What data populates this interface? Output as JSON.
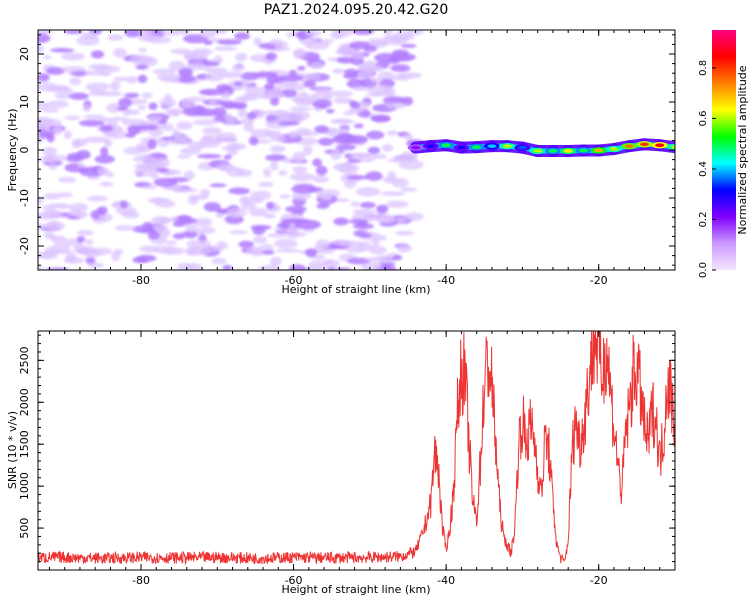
{
  "figure": {
    "title": "PAZ1.2024.095.20.42.G20"
  },
  "chart_data": [
    {
      "type": "heatmap",
      "xlabel": "Height of straight line (km)",
      "ylabel": "Frequency (Hz)",
      "xlim": [
        -93.5,
        -10.0
      ],
      "ylim": [
        -25,
        25
      ],
      "xticks": [
        -80,
        -60,
        -40,
        -20
      ],
      "yticks": [
        20,
        10,
        0,
        -10,
        -20
      ],
      "noise_region_x": [
        -93.5,
        -44.0
      ],
      "noise_freq_range": [
        -25,
        25
      ],
      "noise_amplitude_typical": 0.1,
      "signal_line": {
        "x": [
          -44,
          -42,
          -40,
          -38,
          -36,
          -34,
          -32,
          -30,
          -28,
          -26,
          -24,
          -22,
          -20,
          -18,
          -16,
          -14,
          -12,
          -10
        ],
        "frequency_hz": [
          0.5,
          0.8,
          1.0,
          0.5,
          0.6,
          0.8,
          0.8,
          0.5,
          -0.2,
          -0.2,
          -0.2,
          -0.1,
          -0.1,
          0.2,
          0.8,
          1.2,
          1.0,
          0.6
        ],
        "amplitude": [
          0.2,
          0.3,
          0.5,
          0.3,
          0.5,
          0.4,
          0.6,
          0.35,
          0.6,
          0.5,
          0.65,
          0.5,
          0.7,
          0.6,
          0.75,
          0.8,
          0.85,
          0.6
        ]
      },
      "colorbar": {
        "label": "Normalized spectral amplitude",
        "ticks": [
          0.0,
          0.2,
          0.4,
          0.6,
          0.8
        ],
        "range": [
          0.0,
          0.95
        ],
        "colors": [
          "#f2e6ff",
          "#cc99ff",
          "#8000ff",
          "#0000ff",
          "#00ffff",
          "#00ff00",
          "#ffff00",
          "#ff8000",
          "#ff0000",
          "#ff0080"
        ]
      }
    },
    {
      "type": "line",
      "xlabel": "Height of straight line (km)",
      "ylabel": "SNR (10 * v/v)",
      "xlim": [
        -93.5,
        -10.0
      ],
      "ylim": [
        0,
        2850
      ],
      "xticks": [
        -80,
        -60,
        -40,
        -20
      ],
      "yticks": [
        500,
        1000,
        1500,
        2000,
        2500
      ],
      "color": "#ee3333",
      "series": [
        {
          "x": [
            -93.5,
            -90,
            -85,
            -80,
            -75,
            -70,
            -65,
            -60,
            -55,
            -50,
            -46,
            -44,
            -43,
            -42,
            -41.5,
            -41,
            -40.5,
            -40,
            -39.5,
            -39,
            -38.5,
            -38,
            -37.5,
            -37,
            -36.5,
            -36,
            -35.5,
            -35,
            -34.5,
            -34,
            -33.5,
            -33,
            -32.5,
            -32,
            -31.5,
            -31,
            -30.5,
            -30,
            -29.5,
            -29,
            -28.5,
            -28,
            -27.5,
            -27,
            -26.5,
            -26,
            -25.5,
            -25,
            -24.5,
            -24,
            -23.5,
            -23,
            -22.5,
            -22,
            -21.5,
            -21,
            -20.5,
            -20,
            -19.5,
            -19,
            -18.5,
            -18,
            -17.5,
            -17,
            -16.5,
            -16,
            -15.5,
            -15,
            -14.5,
            -14,
            -13.5,
            -13,
            -12.5,
            -12,
            -11.5,
            -11,
            -10.5,
            -10
          ],
          "y": [
            150,
            150,
            140,
            150,
            145,
            150,
            140,
            150,
            145,
            150,
            160,
            220,
            450,
            800,
            1400,
            1200,
            500,
            250,
            500,
            1000,
            1900,
            2400,
            2300,
            1500,
            800,
            600,
            1300,
            2200,
            2500,
            2200,
            1500,
            800,
            400,
            300,
            200,
            500,
            1500,
            1800,
            1500,
            1700,
            1600,
            1200,
            900,
            1600,
            1400,
            800,
            300,
            150,
            80,
            350,
            1400,
            1800,
            1500,
            1700,
            2100,
            2500,
            2800,
            2600,
            2300,
            2700,
            2200,
            1700,
            1300,
            900,
            1600,
            1900,
            2300,
            2400,
            2100,
            1700,
            1500,
            1900,
            1800,
            1300,
            1600,
            2300,
            2100,
            1700
          ]
        }
      ]
    }
  ]
}
